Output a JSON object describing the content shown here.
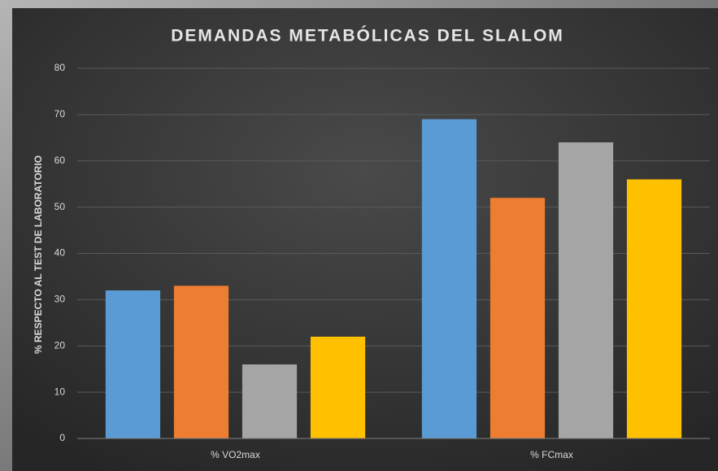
{
  "chart_data": {
    "type": "bar",
    "title": "DEMANDAS METABÓLICAS DEL SLALOM",
    "y_label": "% RESPECTO AL TEST DE LABORATORIO",
    "categories": [
      "% VO2max",
      "% FCmax"
    ],
    "series": [
      {
        "color": "#5b9bd5",
        "values": [
          32,
          69
        ]
      },
      {
        "color": "#ed7d31",
        "values": [
          33,
          52
        ]
      },
      {
        "color": "#a5a5a5",
        "values": [
          16,
          64
        ]
      },
      {
        "color": "#ffc000",
        "values": [
          22,
          56
        ]
      }
    ],
    "ylim": [
      0,
      80
    ],
    "yticks": [
      0,
      10,
      20,
      30,
      40,
      50,
      60,
      70,
      80
    ],
    "grid": true
  }
}
